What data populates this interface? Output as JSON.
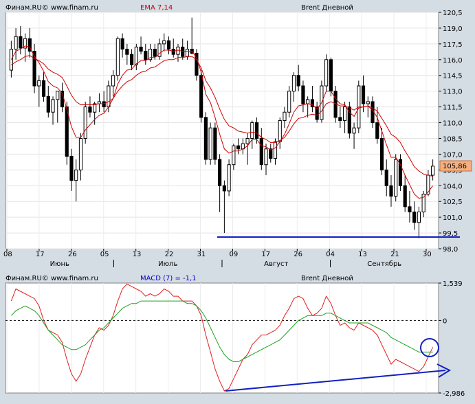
{
  "header": {
    "site": "Финам.RU© www.finam.ru",
    "indicator": "EMA 7,14",
    "instrument": "Brent Дневной",
    "last_price": "105,86"
  },
  "macd_header": {
    "site": "Финам.RU© www.finam.ru",
    "indicator": "MACD (7) = -1,1",
    "instrument": "Brent Дневной"
  },
  "colors": {
    "background": "#d4dce4",
    "plot": "#ffffff",
    "ema_fast": "#d00000",
    "ema_slow": "#d00000",
    "macd": "#e02020",
    "signal": "#20a020",
    "annotation": "#1020c0",
    "price_label": "#f4b080"
  },
  "x_axis": {
    "day_ticks": [
      "08",
      "17",
      "26",
      "05",
      "13",
      "22",
      "31",
      "09",
      "17",
      "26",
      "04",
      "13",
      "21",
      "30"
    ],
    "months": [
      "Июнь",
      "Июль",
      "Август",
      "Сентябрь"
    ]
  },
  "chart_data": [
    {
      "type": "candlestick",
      "title": "Brent Дневной",
      "indicator": "EMA 7,14",
      "ylim": [
        98.0,
        120.5
      ],
      "y_ticks": [
        "120,5",
        "119,0",
        "117,5",
        "116,0",
        "114,5",
        "113,0",
        "111,5",
        "110,0",
        "108,5",
        "107,0",
        "105,5",
        "104,0",
        "102,5",
        "101,0",
        "99,5",
        "98,0"
      ],
      "last_value": 105.86,
      "candles": [
        [
          115.0,
          117.8,
          114.3,
          117.0
        ],
        [
          117.0,
          119.0,
          116.0,
          118.2
        ],
        [
          118.2,
          119.2,
          116.5,
          117.1
        ],
        [
          117.1,
          118.5,
          115.8,
          118.0
        ],
        [
          118.0,
          119.0,
          116.2,
          116.8
        ],
        [
          116.8,
          117.5,
          112.8,
          113.5
        ],
        [
          113.5,
          114.5,
          111.5,
          114.0
        ],
        [
          114.0,
          114.8,
          112.0,
          112.5
        ],
        [
          112.5,
          113.5,
          110.5,
          111.0
        ],
        [
          111.0,
          112.5,
          109.8,
          112.2
        ],
        [
          112.2,
          113.0,
          110.0,
          113.0
        ],
        [
          113.0,
          113.8,
          111.0,
          111.5
        ],
        [
          111.5,
          112.0,
          106.0,
          106.8
        ],
        [
          106.8,
          107.5,
          103.5,
          104.5
        ],
        [
          104.5,
          106.5,
          102.5,
          105.5
        ],
        [
          105.5,
          109.0,
          104.5,
          108.5
        ],
        [
          108.5,
          112.0,
          108.0,
          111.5
        ],
        [
          111.5,
          112.5,
          110.5,
          111.0
        ],
        [
          111.0,
          112.0,
          109.8,
          111.8
        ],
        [
          111.8,
          112.8,
          111.0,
          112.0
        ],
        [
          112.0,
          113.0,
          111.0,
          111.5
        ],
        [
          111.5,
          114.0,
          111.0,
          113.5
        ],
        [
          113.5,
          115.0,
          112.5,
          114.5
        ],
        [
          114.5,
          118.2,
          114.0,
          118.0
        ],
        [
          118.0,
          118.5,
          116.2,
          117.0
        ],
        [
          117.0,
          117.5,
          115.5,
          116.5
        ],
        [
          116.5,
          117.0,
          115.0,
          115.5
        ],
        [
          115.5,
          117.5,
          115.0,
          117.2
        ],
        [
          117.2,
          118.2,
          116.5,
          116.8
        ],
        [
          116.8,
          117.5,
          115.5,
          116.0
        ],
        [
          116.0,
          117.5,
          115.8,
          117.0
        ],
        [
          117.0,
          117.5,
          116.0,
          116.3
        ],
        [
          116.3,
          118.0,
          116.0,
          117.5
        ],
        [
          117.5,
          118.5,
          116.8,
          117.8
        ],
        [
          117.8,
          118.2,
          116.5,
          117.0
        ],
        [
          117.0,
          118.0,
          116.2,
          116.5
        ],
        [
          116.5,
          117.5,
          115.8,
          117.2
        ],
        [
          117.2,
          118.0,
          116.0,
          116.3
        ],
        [
          116.3,
          117.8,
          116.0,
          117.0
        ],
        [
          117.0,
          120.0,
          116.5,
          116.6
        ],
        [
          116.6,
          117.0,
          114.0,
          114.5
        ],
        [
          114.5,
          115.0,
          110.0,
          110.5
        ],
        [
          110.5,
          111.0,
          106.0,
          106.5
        ],
        [
          106.5,
          110.0,
          106.0,
          109.5
        ],
        [
          109.5,
          110.0,
          106.0,
          106.5
        ],
        [
          106.5,
          107.0,
          101.5,
          104.0
        ],
        [
          104.0,
          104.5,
          99.5,
          103.5
        ],
        [
          103.5,
          106.5,
          103.0,
          106.0
        ],
        [
          106.0,
          108.0,
          105.5,
          107.8
        ],
        [
          107.8,
          108.5,
          107.0,
          107.5
        ],
        [
          107.5,
          108.5,
          107.0,
          108.0
        ],
        [
          108.0,
          109.0,
          106.0,
          108.5
        ],
        [
          108.5,
          110.2,
          107.5,
          110.0
        ],
        [
          110.0,
          110.5,
          108.0,
          108.5
        ],
        [
          108.5,
          109.5,
          105.5,
          106.0
        ],
        [
          106.0,
          108.0,
          105.0,
          107.5
        ],
        [
          107.5,
          108.0,
          106.2,
          106.6
        ],
        [
          106.6,
          108.5,
          106.0,
          108.2
        ],
        [
          108.2,
          110.5,
          107.5,
          110.2
        ],
        [
          110.2,
          111.5,
          109.5,
          111.0
        ],
        [
          111.0,
          113.5,
          110.5,
          113.0
        ],
        [
          113.0,
          114.8,
          112.0,
          114.5
        ],
        [
          114.5,
          115.5,
          113.0,
          113.5
        ],
        [
          113.5,
          114.0,
          111.0,
          111.8
        ],
        [
          111.8,
          112.5,
          110.5,
          112.2
        ],
        [
          112.2,
          113.5,
          111.0,
          111.5
        ],
        [
          111.5,
          112.0,
          110.0,
          110.3
        ],
        [
          110.3,
          114.0,
          110.0,
          113.5
        ],
        [
          113.5,
          116.5,
          113.0,
          116.0
        ],
        [
          116.0,
          116.2,
          112.5,
          113.0
        ],
        [
          113.0,
          113.5,
          110.0,
          110.5
        ],
        [
          110.5,
          111.5,
          109.5,
          110.2
        ],
        [
          110.2,
          112.0,
          109.0,
          111.5
        ],
        [
          111.5,
          112.0,
          108.5,
          109.0
        ],
        [
          109.0,
          110.0,
          107.5,
          109.5
        ],
        [
          109.5,
          114.0,
          109.0,
          113.5
        ],
        [
          113.5,
          114.5,
          111.0,
          111.8
        ],
        [
          111.8,
          112.5,
          110.5,
          112.0
        ],
        [
          112.0,
          112.5,
          109.5,
          110.0
        ],
        [
          110.0,
          111.5,
          108.0,
          108.5
        ],
        [
          108.5,
          109.5,
          105.0,
          105.5
        ],
        [
          105.5,
          106.5,
          103.0,
          104.0
        ],
        [
          104.0,
          105.0,
          102.0,
          103.0
        ],
        [
          103.0,
          107.0,
          102.5,
          106.5
        ],
        [
          106.5,
          107.0,
          103.5,
          104.0
        ],
        [
          104.0,
          105.0,
          101.5,
          102.0
        ],
        [
          102.0,
          103.5,
          100.5,
          101.5
        ],
        [
          101.5,
          102.5,
          99.8,
          100.5
        ],
        [
          100.5,
          102.0,
          99.0,
          101.5
        ],
        [
          101.5,
          103.5,
          101.0,
          103.2
        ],
        [
          103.2,
          105.5,
          103.0,
          105.0
        ],
        [
          105.0,
          106.5,
          104.5,
          105.86
        ]
      ],
      "ema_fast": [
        116.0,
        116.8,
        117.0,
        117.3,
        117.2,
        116.3,
        115.7,
        114.9,
        113.9,
        113.5,
        113.3,
        112.8,
        111.3,
        109.6,
        108.6,
        108.6,
        109.3,
        109.8,
        110.3,
        110.7,
        110.9,
        111.5,
        112.3,
        113.7,
        114.5,
        115.0,
        115.1,
        115.6,
        115.9,
        115.9,
        116.2,
        116.2,
        116.6,
        116.9,
        116.9,
        116.8,
        116.9,
        116.8,
        116.8,
        116.8,
        116.2,
        114.8,
        112.7,
        111.9,
        110.5,
        108.9,
        107.5,
        107.1,
        107.3,
        107.3,
        107.5,
        107.8,
        108.4,
        108.4,
        107.8,
        107.7,
        107.4,
        107.6,
        108.2,
        108.9,
        109.9,
        111.0,
        111.6,
        111.7,
        111.8,
        111.7,
        111.3,
        111.9,
        113.0,
        113.0,
        112.3,
        111.8,
        111.7,
        111.0,
        110.6,
        111.4,
        111.5,
        111.6,
        111.2,
        110.5,
        109.2,
        107.9,
        106.7,
        106.7,
        106.0,
        105.0,
        104.1,
        103.2,
        102.8,
        102.9,
        103.4,
        104.0
      ],
      "ema_slow": [
        115.5,
        115.8,
        116.0,
        116.3,
        116.4,
        116.1,
        115.9,
        115.6,
        115.1,
        114.8,
        114.6,
        114.3,
        113.5,
        112.6,
        112.0,
        111.7,
        111.7,
        111.7,
        111.7,
        111.8,
        111.8,
        112.0,
        112.3,
        113.0,
        113.5,
        113.9,
        114.1,
        114.5,
        114.8,
        114.9,
        115.2,
        115.3,
        115.6,
        115.9,
        116.0,
        116.0,
        116.2,
        116.2,
        116.3,
        116.3,
        116.0,
        115.2,
        114.0,
        113.3,
        112.4,
        111.3,
        110.3,
        109.7,
        109.5,
        109.2,
        109.1,
        109.0,
        109.1,
        109.0,
        108.6,
        108.4,
        108.1,
        108.1,
        108.3,
        108.6,
        109.2,
        109.9,
        110.4,
        110.5,
        110.7,
        110.8,
        110.7,
        111.1,
        111.8,
        112.0,
        111.8,
        111.6,
        111.6,
        111.4,
        111.2,
        111.5,
        111.5,
        111.6,
        111.4,
        111.1,
        110.4,
        109.7,
        108.9,
        108.6,
        108.1,
        107.3,
        106.6,
        105.8,
        105.4,
        105.1,
        105.0,
        104.9
      ]
    },
    {
      "type": "line",
      "title": "Brent Дневной",
      "indicator": "MACD (7) = -1,1",
      "ylim": [
        -2.986,
        1.539
      ],
      "y_ticks": [
        "1,539",
        "0",
        "-2,986"
      ],
      "last_value": -1.1,
      "series": [
        {
          "name": "MACD",
          "values": [
            0.8,
            1.3,
            1.2,
            1.1,
            1.0,
            0.9,
            0.6,
            0.0,
            -0.4,
            -0.5,
            -0.6,
            -0.9,
            -1.6,
            -2.2,
            -2.5,
            -2.2,
            -1.6,
            -1.1,
            -0.6,
            -0.3,
            -0.4,
            -0.2,
            0.2,
            0.8,
            1.3,
            1.5,
            1.4,
            1.3,
            1.2,
            1.0,
            1.1,
            1.0,
            1.1,
            1.3,
            1.2,
            1.0,
            1.0,
            0.8,
            0.8,
            0.8,
            0.6,
            0.2,
            -0.6,
            -1.3,
            -2.0,
            -2.5,
            -2.9,
            -2.8,
            -2.4,
            -2.0,
            -1.6,
            -1.4,
            -1.0,
            -0.8,
            -0.6,
            -0.6,
            -0.5,
            -0.4,
            -0.2,
            0.2,
            0.5,
            0.9,
            1.0,
            0.9,
            0.5,
            0.2,
            0.3,
            0.5,
            1.0,
            0.7,
            0.2,
            -0.2,
            -0.1,
            -0.3,
            -0.4,
            -0.1,
            -0.2,
            -0.3,
            -0.4,
            -0.6,
            -1.0,
            -1.4,
            -1.8,
            -1.6,
            -1.7,
            -1.8,
            -1.9,
            -2.0,
            -2.1,
            -1.9,
            -1.5,
            -1.1
          ]
        },
        {
          "name": "Signal",
          "values": [
            0.2,
            0.4,
            0.5,
            0.6,
            0.5,
            0.4,
            0.2,
            -0.1,
            -0.4,
            -0.6,
            -0.8,
            -1.0,
            -1.1,
            -1.2,
            -1.2,
            -1.1,
            -1.0,
            -0.8,
            -0.6,
            -0.4,
            -0.3,
            -0.1,
            0.1,
            0.3,
            0.5,
            0.6,
            0.7,
            0.7,
            0.8,
            0.8,
            0.8,
            0.8,
            0.8,
            0.8,
            0.8,
            0.8,
            0.8,
            0.8,
            0.7,
            0.7,
            0.6,
            0.4,
            0.1,
            -0.3,
            -0.7,
            -1.1,
            -1.4,
            -1.6,
            -1.7,
            -1.7,
            -1.6,
            -1.5,
            -1.4,
            -1.3,
            -1.2,
            -1.1,
            -1.0,
            -0.9,
            -0.8,
            -0.6,
            -0.4,
            -0.2,
            0.0,
            0.1,
            0.2,
            0.2,
            0.2,
            0.2,
            0.3,
            0.3,
            0.2,
            0.1,
            0.0,
            -0.1,
            -0.1,
            -0.1,
            -0.1,
            -0.1,
            -0.2,
            -0.3,
            -0.4,
            -0.5,
            -0.7,
            -0.8,
            -0.9,
            -1.0,
            -1.1,
            -1.2,
            -1.3,
            -1.3,
            -1.3,
            -1.3
          ]
        }
      ]
    }
  ]
}
